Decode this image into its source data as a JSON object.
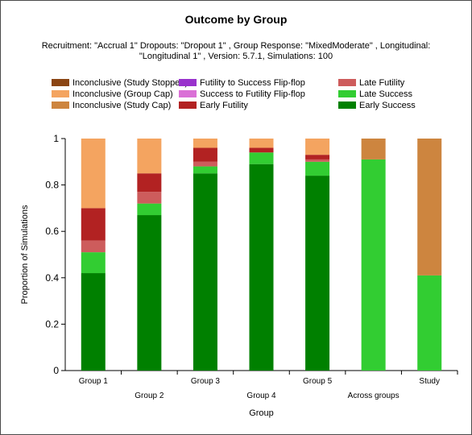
{
  "chart_data": {
    "type": "bar",
    "stacked": true,
    "title": "Outcome by Group",
    "subtitle_lines": [
      "Recruitment: \"Accrual 1\" Dropouts: \"Dropout 1\" , Group Response: \"MixedModerate\" , Longitudinal:",
      "\"Longitudinal 1\" , Version: 5.7.1, Simulations: 100"
    ],
    "xlabel": "Group",
    "ylabel": "Proportion of Simulations",
    "ylim": [
      0,
      1
    ],
    "yticks": [
      "0",
      "0.2",
      "0.4",
      "0.6",
      "0.8",
      "1"
    ],
    "grid": false,
    "legend_position": "top",
    "categories": [
      "Group 1",
      "Group 2",
      "Group 3",
      "Group 4",
      "Group 5",
      "Across groups",
      "Study"
    ],
    "series": [
      {
        "name": "Early Success",
        "color": "#008000",
        "values": [
          0.42,
          0.67,
          0.85,
          0.89,
          0.84,
          0,
          0
        ]
      },
      {
        "name": "Late Success",
        "color": "#32cd32",
        "values": [
          0.09,
          0.05,
          0.03,
          0.05,
          0.06,
          0.91,
          0.41
        ]
      },
      {
        "name": "Late Futility",
        "color": "#cd5c5c",
        "values": [
          0.05,
          0.05,
          0.02,
          0,
          0.01,
          0,
          0
        ]
      },
      {
        "name": "Early Futility",
        "color": "#b22222",
        "values": [
          0.14,
          0.08,
          0.06,
          0.02,
          0.02,
          0,
          0
        ]
      },
      {
        "name": "Success to Futility Flip-flop",
        "color": "#da70d6",
        "values": [
          0,
          0,
          0,
          0,
          0,
          0,
          0
        ]
      },
      {
        "name": "Futility to Success Flip-flop",
        "color": "#9932cc",
        "values": [
          0,
          0,
          0,
          0,
          0,
          0,
          0
        ]
      },
      {
        "name": "Inconclusive (Study Cap)",
        "color": "#cd853f",
        "values": [
          0,
          0,
          0,
          0,
          0,
          0.09,
          0.59
        ]
      },
      {
        "name": "Inconclusive (Group Cap)",
        "color": "#f4a460",
        "values": [
          0.3,
          0.15,
          0.04,
          0.04,
          0.07,
          0,
          0
        ]
      },
      {
        "name": "Inconclusive (Study Stopped)",
        "color": "#8b4513",
        "values": [
          0,
          0,
          0,
          0,
          0,
          0,
          0
        ]
      }
    ],
    "legend_order": [
      "Inconclusive (Study Stopped)",
      "Inconclusive (Group Cap)",
      "Inconclusive (Study Cap)",
      "Futility to Success Flip-flop",
      "Success to Futility Flip-flop",
      "Early Futility",
      "Late Futility",
      "Late Success",
      "Early Success"
    ]
  }
}
